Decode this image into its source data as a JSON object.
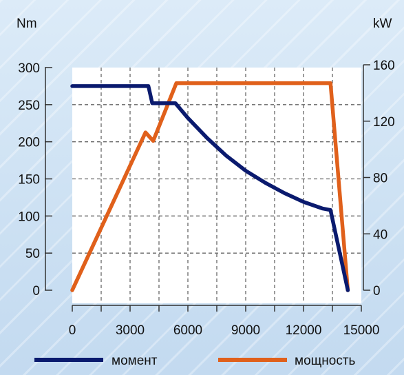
{
  "chart_data": {
    "type": "line",
    "left_axis_unit": "Nm",
    "right_axis_unit": "kW",
    "xlim": [
      0,
      15000
    ],
    "ylim_left": [
      0,
      300
    ],
    "ylim_right": [
      0,
      160
    ],
    "x_ticks": [
      0,
      3000,
      6000,
      9000,
      12000,
      15000
    ],
    "x_tick_labels": [
      "0",
      "3000",
      "6000",
      "9000",
      "12000",
      "15000"
    ],
    "y_left_ticks": [
      0,
      50,
      100,
      150,
      200,
      250,
      300
    ],
    "y_left_tick_labels": [
      "0",
      "50",
      "100",
      "150",
      "200",
      "250",
      "300"
    ],
    "y_right_ticks": [
      0,
      40,
      80,
      120,
      160
    ],
    "y_right_tick_labels": [
      "0",
      "40",
      "80",
      "120",
      "160"
    ],
    "vertical_gridlines": [
      1500,
      3000,
      4500,
      6000,
      7500,
      9000,
      10500,
      12000,
      13500
    ],
    "horizontal_gridlines": [
      50,
      100,
      150,
      200,
      250
    ],
    "grid": true,
    "legend_position": "bottom",
    "series": [
      {
        "name": "момент",
        "axis": "left",
        "color": "#0a1a6e",
        "points": [
          [
            0,
            275
          ],
          [
            3950,
            275
          ],
          [
            4150,
            252
          ],
          [
            5350,
            252
          ],
          [
            6000,
            232
          ],
          [
            7000,
            205
          ],
          [
            8000,
            181
          ],
          [
            9000,
            161
          ],
          [
            10000,
            145
          ],
          [
            11000,
            131
          ],
          [
            12000,
            119
          ],
          [
            13000,
            110
          ],
          [
            13400,
            108
          ],
          [
            14300,
            0
          ]
        ]
      },
      {
        "name": "мощность",
        "axis": "right",
        "color": "#e0601b",
        "points": [
          [
            0,
            0
          ],
          [
            3800,
            112
          ],
          [
            4200,
            106
          ],
          [
            5400,
            147
          ],
          [
            13400,
            147
          ],
          [
            14300,
            0
          ]
        ]
      }
    ]
  }
}
